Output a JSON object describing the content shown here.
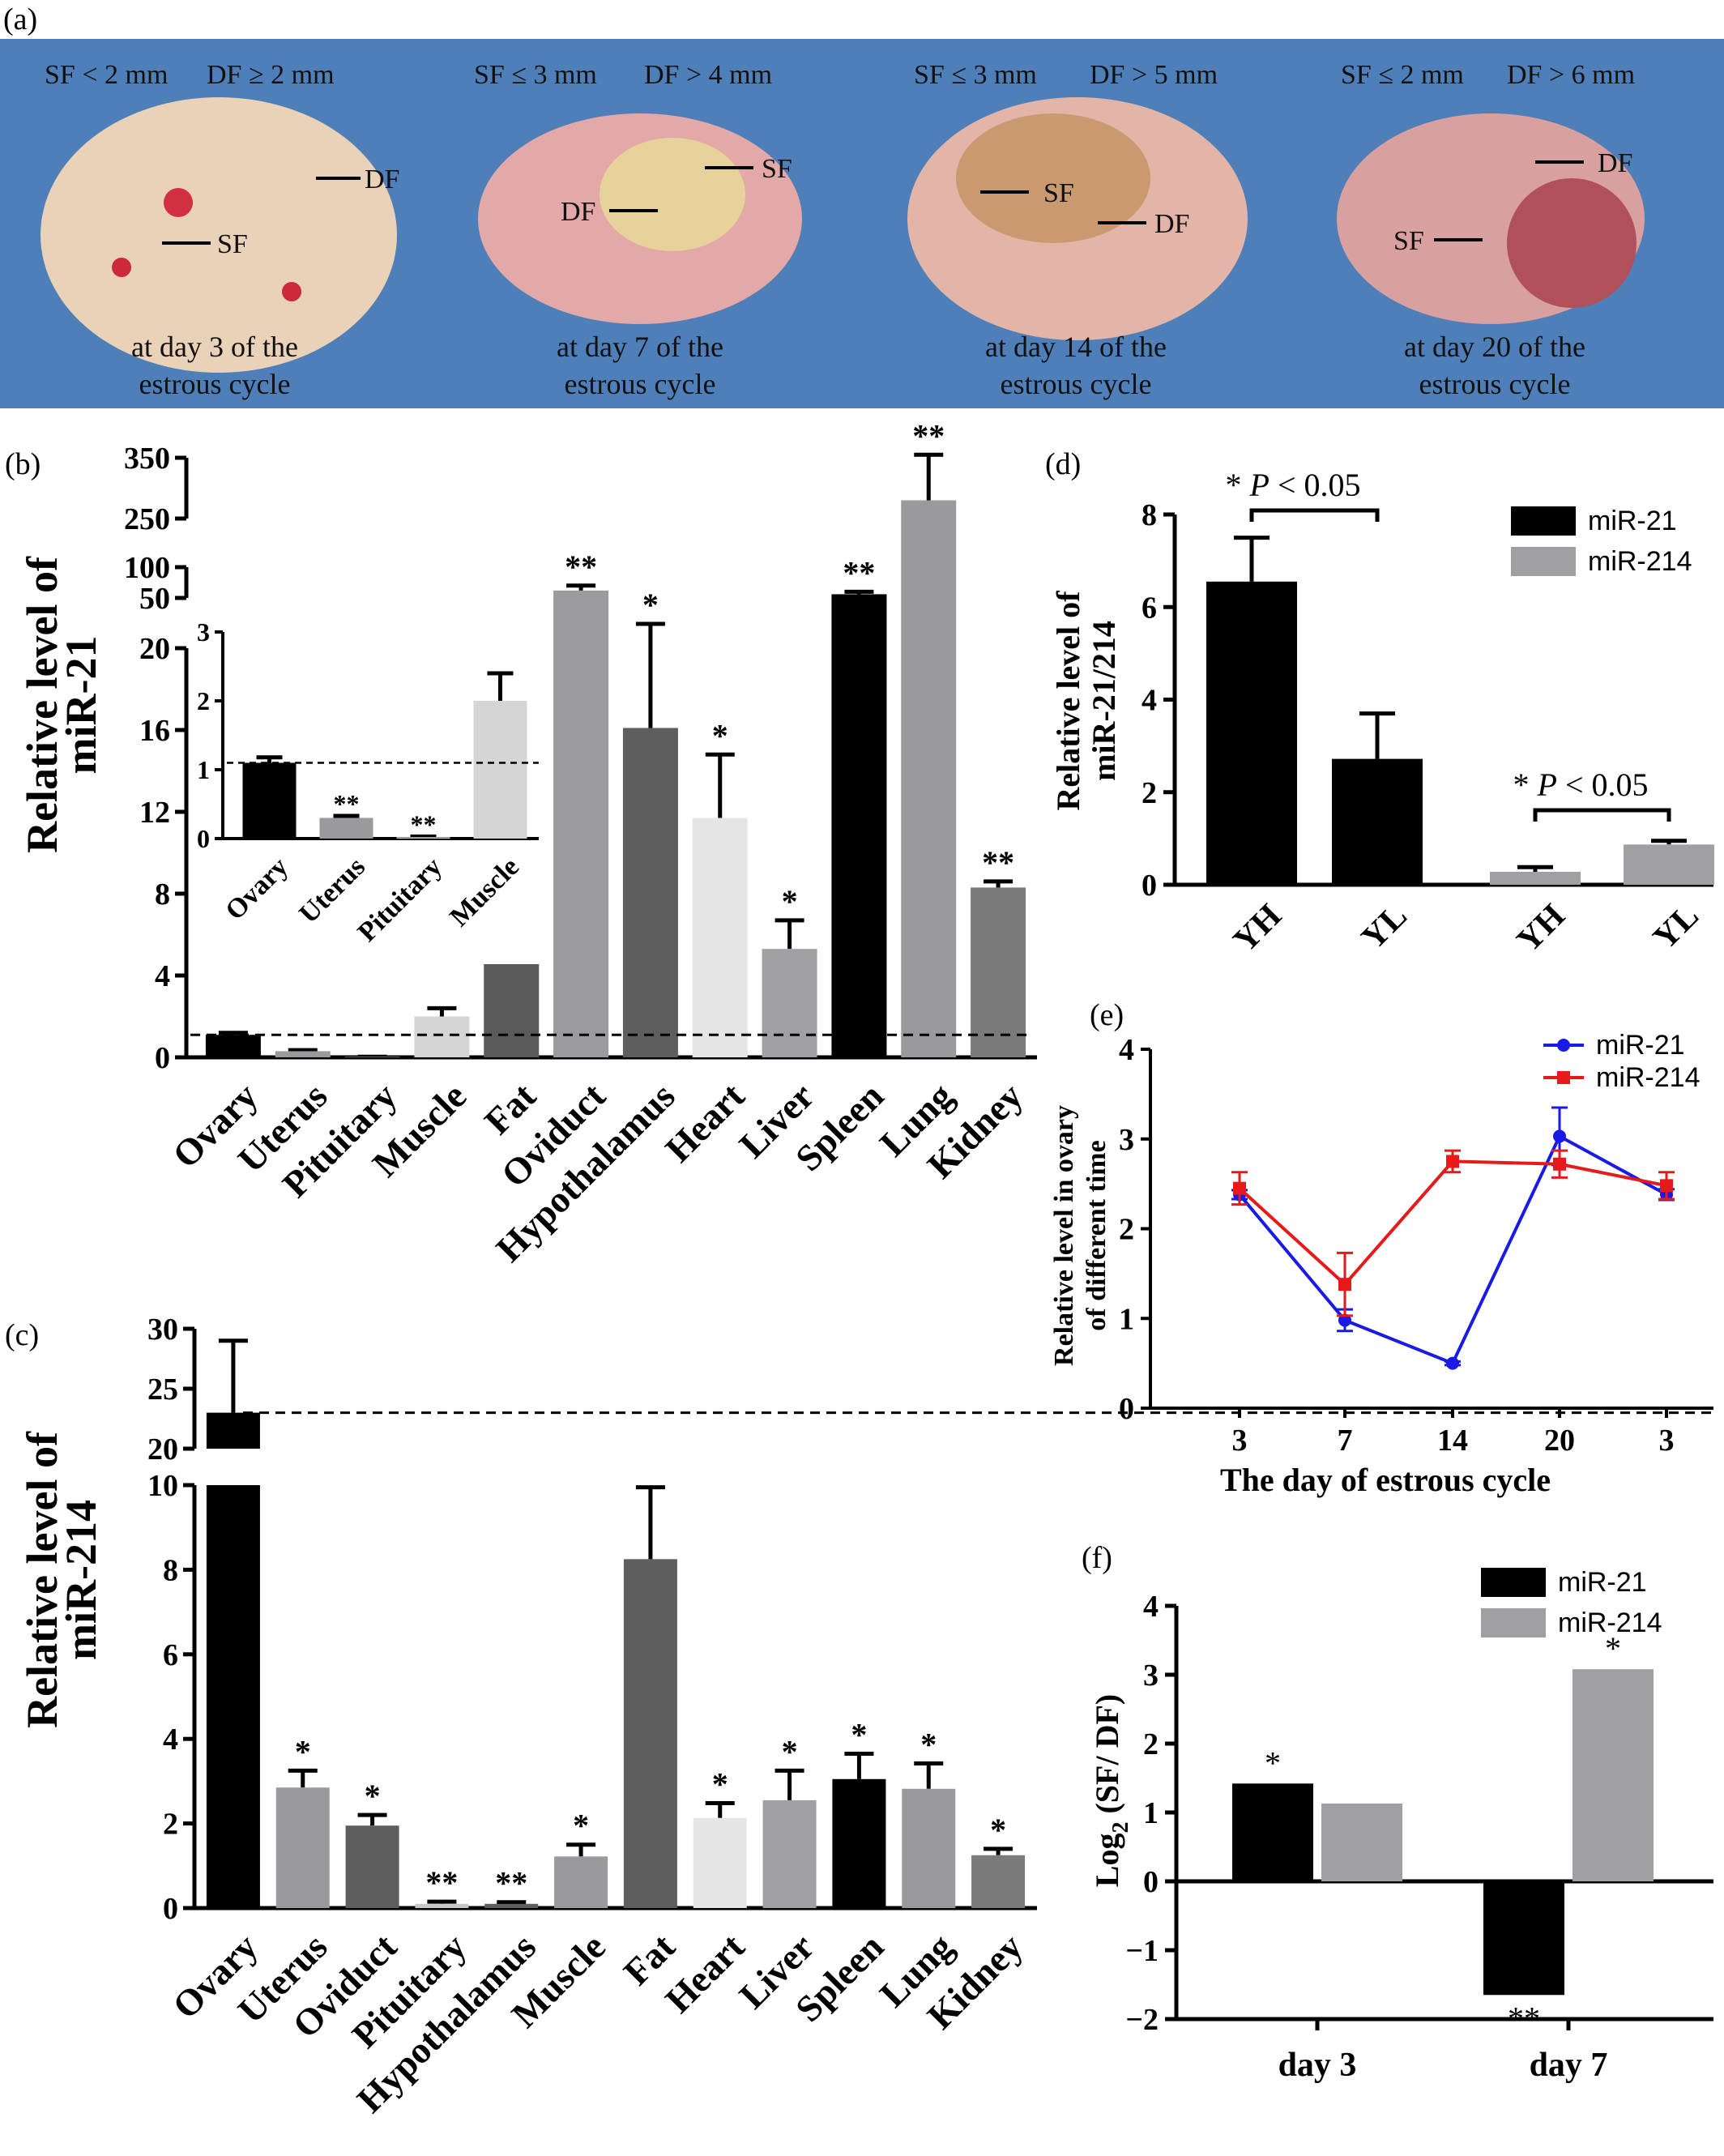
{
  "panel_a": {
    "label": "(a)",
    "photos": [
      {
        "header_sf": "SF < 2 mm",
        "header_df": "DF ≥ 2 mm",
        "lab1": "DF",
        "lab2": "SF",
        "cap1": "at day 3 of the",
        "cap2": "estrous cycle"
      },
      {
        "header_sf": "SF ≤ 3 mm",
        "header_df": "DF > 4 mm",
        "lab1": "SF",
        "lab2": "DF",
        "cap1": "at day 7 of the",
        "cap2": "estrous cycle"
      },
      {
        "header_sf": "SF ≤ 3 mm",
        "header_df": "DF > 5 mm",
        "lab1": "SF",
        "lab2": "DF",
        "cap1": "at day 14 of the",
        "cap2": "estrous cycle"
      },
      {
        "header_sf": "SF ≤ 2 mm",
        "header_df": "DF > 6 mm",
        "lab1": "DF",
        "lab2": "SF",
        "cap1": "at day 20 of the",
        "cap2": "estrous cycle"
      }
    ],
    "colors": {
      "background": "#4f7fb8",
      "tissue": "#e8b8a8"
    }
  },
  "chart_data": [
    {
      "panel": "(b)",
      "type": "bar",
      "ylabel_line1": "Relative level of",
      "ylabel_line2": "miR-21",
      "categories": [
        "Ovary",
        "Uterus",
        "Pituitary",
        "Muscle",
        "Fat",
        "Oviduct",
        "Hypothalamus",
        "Heart",
        "Liver",
        "Spleen",
        "Lung",
        "Kidney"
      ],
      "values": [
        1.1,
        0.3,
        0.02,
        2.0,
        6.9,
        62,
        16.1,
        11.7,
        5.3,
        56,
        280,
        8.3
      ],
      "errors": [
        0.1,
        0.05,
        0.01,
        0.4,
        0.7,
        8,
        8.6,
        3.1,
        1.4,
        4,
        75,
        0.3
      ],
      "significance": [
        "",
        "",
        "",
        "",
        "**",
        "**",
        "*",
        "*",
        "*",
        "**",
        "**",
        "**"
      ],
      "colors": [
        "#000000",
        "#9a9a9c",
        "#c8c8c8",
        "#d5d5d5",
        "#5a5a5a",
        "#9b9b9d",
        "#5e5e5e",
        "#e5e5e5",
        "#a0a0a2",
        "#000000",
        "#9a9a9c",
        "#7a7a7a"
      ],
      "y_segments": [
        {
          "range": [
            0,
            20
          ],
          "ticks": [
            0,
            4,
            8,
            12,
            16,
            20
          ]
        },
        {
          "range": [
            50,
            100
          ],
          "ticks": [
            50,
            100
          ]
        },
        {
          "range": [
            250,
            350
          ],
          "ticks": [
            250,
            350
          ]
        }
      ],
      "reference_line": 1.1,
      "inset": {
        "categories": [
          "Ovary",
          "Uterus",
          "Pituitary",
          "Muscle"
        ],
        "values": [
          1.1,
          0.3,
          0.02,
          2.0
        ],
        "errors": [
          0.08,
          0.03,
          0.01,
          0.4
        ],
        "significance": [
          "",
          "**",
          "**",
          ""
        ],
        "ylim": [
          0,
          3
        ],
        "yticks": [
          0,
          1,
          2,
          3
        ]
      }
    },
    {
      "panel": "(c)",
      "type": "bar",
      "ylabel_line1": "Relative level of",
      "ylabel_line2": "miR-214",
      "categories": [
        "Ovary",
        "Uterus",
        "Oviduct",
        "Pituitary",
        "Hypothalamus",
        "Muscle",
        "Fat",
        "Heart",
        "Liver",
        "Spleen",
        "Lung",
        "Kidney"
      ],
      "values": [
        23,
        2.85,
        1.95,
        0.1,
        0.1,
        1.22,
        8.25,
        2.13,
        2.55,
        3.05,
        2.82,
        1.25
      ],
      "errors": [
        6,
        0.4,
        0.25,
        0.05,
        0.04,
        0.28,
        1.7,
        0.35,
        0.7,
        0.6,
        0.6,
        0.15
      ],
      "significance": [
        "",
        "*",
        "*",
        "**",
        "**",
        "*",
        "",
        "*",
        "*",
        "*",
        "*",
        "*"
      ],
      "colors": [
        "#000000",
        "#9a9a9c",
        "#5e5e5e",
        "#c8c8c8",
        "#5e5e5e",
        "#9a9a9c",
        "#5e5e5e",
        "#e5e5e5",
        "#a0a0a2",
        "#000000",
        "#9a9a9c",
        "#7a7a7a"
      ],
      "y_segments": [
        {
          "range": [
            0,
            10
          ],
          "ticks": [
            0,
            2,
            4,
            6,
            8,
            10
          ]
        },
        {
          "range": [
            20,
            30
          ],
          "ticks": [
            20,
            25,
            30
          ]
        }
      ],
      "reference_line": 23
    },
    {
      "panel": "(d)",
      "type": "bar",
      "ylabel_line1": "Relative level of",
      "ylabel_line2": "miR-21/214",
      "categories": [
        "YH",
        "YL",
        "YH",
        "YL"
      ],
      "values": [
        6.55,
        2.72,
        0.28,
        0.87
      ],
      "errors": [
        0.95,
        0.98,
        0.1,
        0.08
      ],
      "colors": [
        "#000000",
        "#000000",
        "#a0a0a2",
        "#a0a0a2"
      ],
      "ylim": [
        0,
        8
      ],
      "yticks": [
        0,
        2,
        4,
        6,
        8
      ],
      "legend": [
        "miR-21",
        "miR-214"
      ],
      "legend_colors": [
        "#000000",
        "#a0a0a2"
      ],
      "annotations": [
        {
          "star": "*",
          "p_sym": "P",
          "p_rest": " < 0.05"
        },
        {
          "star": "*",
          "p_sym": "P",
          "p_rest": " < 0.05"
        }
      ]
    },
    {
      "panel": "(e)",
      "type": "line",
      "ylabel_line1": "Relative  level in ovary",
      "ylabel_line2": "of different time",
      "xlabel": "The day of estrous cycle",
      "x": [
        "3",
        "7",
        "14",
        "20",
        "3"
      ],
      "series": [
        {
          "name": "miR-21",
          "color": "#1a1ae6",
          "values": [
            2.38,
            0.98,
            0.5,
            3.03,
            2.38
          ],
          "errors": [
            0.05,
            0.12,
            0.02,
            0.32,
            0.06
          ]
        },
        {
          "name": "miR-214",
          "color": "#e61a1a",
          "values": [
            2.45,
            1.38,
            2.75,
            2.72,
            2.48
          ],
          "errors": [
            0.18,
            0.35,
            0.12,
            0.15,
            0.15
          ]
        }
      ],
      "ylim": [
        0,
        4
      ],
      "yticks": [
        0,
        1,
        2,
        3,
        4
      ]
    },
    {
      "panel": "(f)",
      "type": "bar",
      "ylabel": "Log2 (SF/ DF)",
      "ylabel_main": "Log",
      "ylabel_sub": "2",
      "ylabel_rest": " (SF/ DF)",
      "categories": [
        "day 3",
        "day 7"
      ],
      "series": [
        {
          "name": "miR-21",
          "color": "#000000",
          "values": [
            1.42,
            -1.65
          ],
          "significance": [
            "*",
            "**"
          ]
        },
        {
          "name": "miR-214",
          "color": "#a0a0a2",
          "values": [
            1.13,
            3.08
          ],
          "significance": [
            "",
            "*"
          ]
        }
      ],
      "ylim": [
        -2,
        4
      ],
      "yticks": [
        -2,
        -1,
        0,
        1,
        2,
        3,
        4
      ],
      "yticklabels": [
        "−2",
        "−1",
        "0",
        "1",
        "2",
        "3",
        "4"
      ]
    }
  ]
}
